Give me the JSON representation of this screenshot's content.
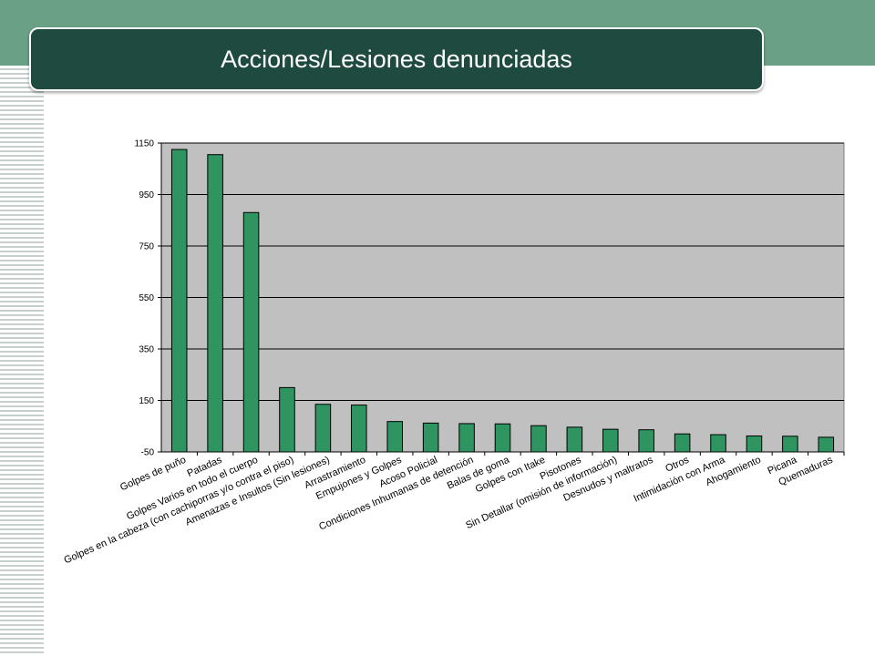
{
  "header": {
    "title": "Acciones/Lesiones denunciadas"
  },
  "colors": {
    "top_band": "#6aa084",
    "title_bg": "#1e4a40",
    "plot_bg": "#c0c0c0",
    "bar_fill": "#2e9460",
    "bar_stroke": "#000000",
    "gridline": "#000000"
  },
  "chart_data": {
    "type": "bar",
    "title": "",
    "xlabel": "",
    "ylabel": "",
    "ylim": [
      -50,
      1150
    ],
    "yticks": [
      -50,
      150,
      350,
      550,
      750,
      950,
      1150
    ],
    "ytick_labels": [
      "-50",
      "150",
      "350",
      "550",
      "750",
      "950",
      "1150"
    ],
    "grid": true,
    "legend": "none",
    "categories": [
      "Golpes de puño",
      "Patadas",
      "Golpes Varios en todo el cuerpo",
      "Golpes en la cabeza (con cachiporras y/o contra el piso)",
      "Amenazas e Insultos (Sin lesiones)",
      "Arrastramiento",
      "Empujones y Golpes",
      "Acoso Policial",
      "Condiciones Inhumanas de detención",
      "Balas de goma",
      "Golpes con Itake",
      "Pisotones",
      "Sin Detallar (omisión de información)",
      "Desnudos y maltratos",
      "Otros",
      "Intimidación con Arma",
      "Ahogamiento",
      "Picana",
      "Quemaduras"
    ],
    "values": [
      1125,
      1105,
      880,
      200,
      135,
      132,
      68,
      62,
      60,
      59,
      52,
      46,
      38,
      36,
      20,
      17,
      12,
      11,
      7
    ]
  }
}
